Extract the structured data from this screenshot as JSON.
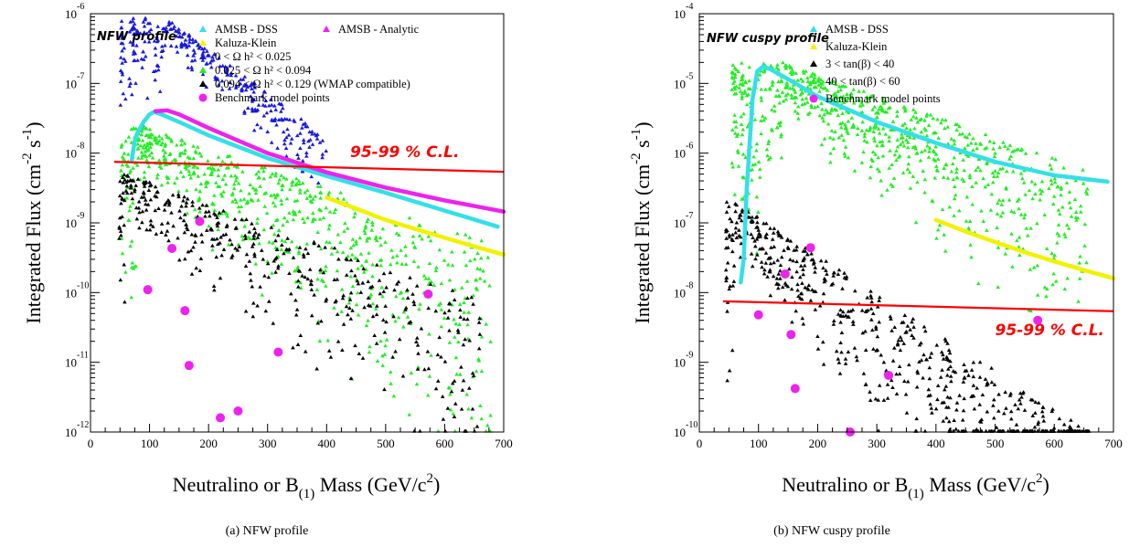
{
  "chart_data": [
    {
      "type": "scatter",
      "panel_tag": "NFW profile",
      "xlabel_main": "Neutralino or B",
      "xlabel_sub": "(1)",
      "xlabel_tail": " Mass (GeV/c",
      "xlabel_sup": "2",
      "xlabel_close": ")",
      "ylabel_main": "Integrated Flux (cm",
      "ylabel_sup1": "-2",
      "ylabel_mid": " s",
      "ylabel_sup2": "-1",
      "ylabel_close": ")",
      "xlim": [
        0,
        700
      ],
      "ylim": [
        1e-12,
        1e-06
      ],
      "yscale": "log",
      "xticks": [
        0,
        100,
        200,
        300,
        400,
        500,
        600,
        700
      ],
      "yticks": [
        {
          "base": "10",
          "exp": "-12",
          "value": 1e-12
        },
        {
          "base": "10",
          "exp": "-11",
          "value": 1e-11
        },
        {
          "base": "10",
          "exp": "-10",
          "value": 1e-10
        },
        {
          "base": "10",
          "exp": "-9",
          "value": 1e-09
        },
        {
          "base": "10",
          "exp": "-8",
          "value": 1e-08
        },
        {
          "base": "10",
          "exp": "-7",
          "value": 1e-07
        },
        {
          "base": "10",
          "exp": "-6",
          "value": 1e-06
        }
      ],
      "legend": [
        {
          "label": "AMSB - DSS",
          "color": "#33e0e8",
          "marker": "triangle"
        },
        {
          "label": "AMSB - Analytic",
          "color": "#ee22ee",
          "marker": "triangle"
        },
        {
          "label": "Kaluza-Klein",
          "color": "#f2f200",
          "marker": "triangle"
        },
        {
          "label": "0 < Ω h² < 0.025",
          "color": "#1818e0",
          "marker": "triangle"
        },
        {
          "label": "0.025 < Ω h² < 0.094",
          "color": "#22ee22",
          "marker": "triangle"
        },
        {
          "label": "0.094 < Ω h² < 0.129 (WMAP compatible)",
          "color": "#000000",
          "marker": "triangle"
        },
        {
          "label": "Benchmark model points",
          "color": "#ee22ee",
          "marker": "circle"
        }
      ],
      "sensitivity_label": "95-99 % C.L.",
      "sensitivity_line": {
        "x": [
          40,
          700
        ],
        "y": [
          7.5e-09,
          5.4e-09
        ],
        "color": "#ff0000"
      },
      "curves": [
        {
          "name": "AMSB - DSS",
          "color": "#33e0e8",
          "x": [
            70,
            75,
            80,
            90,
            100,
            108,
            120,
            150,
            200,
            300,
            400,
            500,
            600,
            690
          ],
          "y": [
            8e-09,
            1.5e-08,
            2e-08,
            2.8e-08,
            3.6e-08,
            3.9e-08,
            3.6e-08,
            2.8e-08,
            1.8e-08,
            8.5e-09,
            4.7e-09,
            2.7e-09,
            1.5e-09,
            8.8e-10
          ]
        },
        {
          "name": "AMSB - Analytic",
          "color": "#ee22ee",
          "x": [
            110,
            130,
            150,
            200,
            300,
            400,
            500,
            600,
            700
          ],
          "y": [
            4e-08,
            4.1e-08,
            3.6e-08,
            2.3e-08,
            1e-08,
            5.3e-09,
            3.2e-09,
            2.1e-09,
            1.45e-09
          ]
        },
        {
          "name": "Kaluza-Klein",
          "color": "#f2f200",
          "x": [
            400,
            450,
            500,
            550,
            600,
            650,
            700
          ],
          "y": [
            2.3e-09,
            1.6e-09,
            1.1e-09,
            8.2e-10,
            6.1e-10,
            4.6e-10,
            3.5e-10
          ]
        }
      ],
      "benchmarks": [
        {
          "x": 97,
          "y": 1.1e-10
        },
        {
          "x": 138,
          "y": 4.3e-10
        },
        {
          "x": 160,
          "y": 5.5e-11
        },
        {
          "x": 167,
          "y": 9e-12
        },
        {
          "x": 185,
          "y": 1.05e-09
        },
        {
          "x": 220,
          "y": 1.6e-12
        },
        {
          "x": 250,
          "y": 2e-12
        },
        {
          "x": 318,
          "y": 1.4e-11
        },
        {
          "x": 572,
          "y": 9.5e-11
        }
      ],
      "scatter_regions": [
        {
          "name": "0 < Ω h² < 0.025",
          "color": "#1818e0",
          "count": 320,
          "x": [
            50,
            400
          ],
          "peak_x": 125,
          "peak_y": 9e-07,
          "decay": 0.62,
          "spread": 1.3
        },
        {
          "name": "0.025 < Ω h² < 0.094",
          "color": "#22ee22",
          "count": 700,
          "x": [
            50,
            680
          ],
          "peak_x": 80,
          "peak_y": 2.5e-08,
          "decay": 0.28,
          "spread": 2.6
        },
        {
          "name": "0.094 < Ω h² < 0.129 (WMAP compatible)",
          "color": "#000000",
          "count": 420,
          "x": [
            48,
            660
          ],
          "peak_x": 60,
          "peak_y": 5e-09,
          "decay": 0.3,
          "spread": 2.2
        }
      ]
    },
    {
      "type": "scatter",
      "panel_tag": "NFW cuspy profile",
      "xlabel_main": "Neutralino or B",
      "xlabel_sub": "(1)",
      "xlabel_tail": " Mass (GeV/c",
      "xlabel_sup": "2",
      "xlabel_close": ")",
      "ylabel_main": "Integrated Flux (cm",
      "ylabel_sup1": "-2",
      "ylabel_mid": " s",
      "ylabel_sup2": "-1",
      "ylabel_close": ")",
      "xlim": [
        0,
        700
      ],
      "ylim": [
        1e-10,
        0.0001
      ],
      "yscale": "log",
      "xticks": [
        0,
        100,
        200,
        300,
        400,
        500,
        600,
        700
      ],
      "yticks": [
        {
          "base": "10",
          "exp": "-10",
          "value": 1e-10
        },
        {
          "base": "10",
          "exp": "-9",
          "value": 1e-09
        },
        {
          "base": "10",
          "exp": "-8",
          "value": 1e-08
        },
        {
          "base": "10",
          "exp": "-7",
          "value": 1e-07
        },
        {
          "base": "10",
          "exp": "-6",
          "value": 1e-06
        },
        {
          "base": "10",
          "exp": "-5",
          "value": 1e-05
        },
        {
          "base": "10",
          "exp": "-4",
          "value": 0.0001
        }
      ],
      "legend": [
        {
          "label": "AMSB - DSS",
          "color": "#33e0e8",
          "marker": "triangle"
        },
        {
          "label": "Kaluza-Klein",
          "color": "#f2f200",
          "marker": "triangle"
        },
        {
          "label": "3 < tan(β) < 40",
          "color": "#000000",
          "marker": "triangle"
        },
        {
          "label": "40 < tan(β) < 60",
          "color": "#22ee22",
          "marker": "triangle"
        },
        {
          "label": "Benchmark model points",
          "color": "#ee22ee",
          "marker": "circle"
        }
      ],
      "sensitivity_label": "95-99 % C.L.",
      "sensitivity_line": {
        "x": [
          40,
          700
        ],
        "y": [
          7.5e-09,
          5.4e-09
        ],
        "color": "#ff0000"
      },
      "curves": [
        {
          "name": "AMSB - DSS",
          "color": "#33e0e8",
          "x": [
            70,
            75,
            80,
            90,
            98,
            108,
            120,
            150,
            200,
            300,
            400,
            500,
            600,
            690
          ],
          "y": [
            1.4e-08,
            3e-08,
            3e-07,
            6e-06,
            1.5e-05,
            1.75e-05,
            1.6e-05,
            1.15e-05,
            6.5e-06,
            2.8e-06,
            1.4e-06,
            7.5e-07,
            4.8e-07,
            3.9e-07
          ]
        },
        {
          "name": "Kaluza-Klein",
          "color": "#f2f200",
          "x": [
            400,
            450,
            500,
            550,
            600,
            650,
            700
          ],
          "y": [
            1.1e-07,
            7.5e-08,
            5.3e-08,
            3.8e-08,
            2.8e-08,
            2.1e-08,
            1.6e-08
          ]
        }
      ],
      "benchmarks": [
        {
          "x": 100,
          "y": 4.8e-09
        },
        {
          "x": 145,
          "y": 1.85e-08
        },
        {
          "x": 155,
          "y": 2.5e-09
        },
        {
          "x": 162,
          "y": 4.2e-10
        },
        {
          "x": 188,
          "y": 4.4e-08
        },
        {
          "x": 255,
          "y": 1e-10
        },
        {
          "x": 320,
          "y": 6.5e-10
        },
        {
          "x": 572,
          "y": 4e-09
        }
      ],
      "scatter_regions": [
        {
          "name": "40 < tan(β) < 60",
          "color": "#22ee22",
          "count": 800,
          "x": [
            55,
            660
          ],
          "peak_x": 140,
          "peak_y": 2e-05,
          "decay": 0.3,
          "spread": 2.3
        },
        {
          "name": "3 < tan(β) < 40",
          "color": "#000000",
          "count": 600,
          "x": [
            45,
            660
          ],
          "peak_x": 60,
          "peak_y": 2e-07,
          "decay": 0.55,
          "spread": 2.6
        }
      ]
    }
  ],
  "captions": [
    "(a) NFW profile",
    "(b) NFW cuspy profile"
  ]
}
